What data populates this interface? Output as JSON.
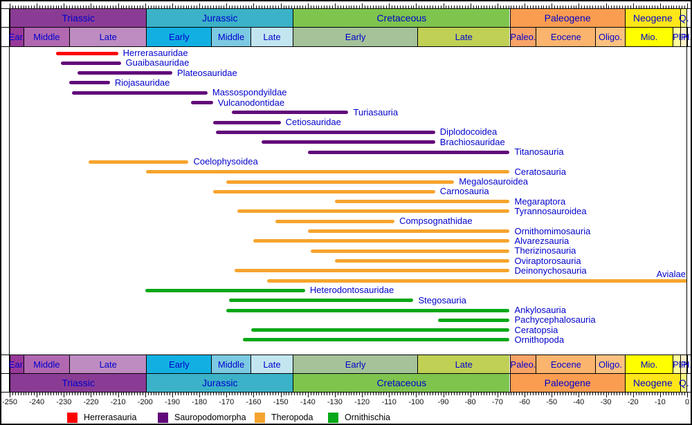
{
  "chart_data": {
    "type": "bar",
    "subtype": "temporal-range-timeline",
    "xlim": [
      -250,
      0
    ],
    "x_tick_labels": [
      "-250",
      "-240",
      "-230",
      "-220",
      "-210",
      "-200",
      "-190",
      "-180",
      "-170",
      "-160",
      "-150",
      "-140",
      "-130",
      "-120",
      "-110",
      "-100",
      "-90",
      "-80",
      "-70",
      "-60",
      "-50",
      "-40",
      "-30",
      "-20",
      "-10",
      "0"
    ],
    "minor_tick_step": 1,
    "major_tick_step": 10,
    "grid": false,
    "label_color": "#0000CC",
    "periods": [
      {
        "label": "Triassic",
        "start": -250,
        "end": -199.6,
        "color": "#8A3C95"
      },
      {
        "label": "Jurassic",
        "start": -199.6,
        "end": -145.5,
        "color": "#3BB2C8"
      },
      {
        "label": "Cretaceous",
        "start": -145.5,
        "end": -65.5,
        "color": "#7EC44D"
      },
      {
        "label": "Paleogene",
        "start": -65.5,
        "end": -23.03,
        "color": "#FA9D50"
      },
      {
        "label": "Neogene",
        "start": -23.03,
        "end": -2.59,
        "color": "#FFE619"
      },
      {
        "label": "Q.",
        "start": -2.59,
        "end": 0,
        "color": "#F9F97F"
      }
    ],
    "epochs": [
      {
        "label": "Ear.",
        "start": -250,
        "end": -245,
        "color": "#983999"
      },
      {
        "label": "Middle",
        "start": -245,
        "end": -228,
        "color": "#B168B1"
      },
      {
        "label": "Late",
        "start": -228,
        "end": -199.6,
        "color": "#BE8CC1"
      },
      {
        "label": "Early",
        "start": -199.6,
        "end": -175.6,
        "color": "#12B0E2"
      },
      {
        "label": "Middle",
        "start": -175.6,
        "end": -161.2,
        "color": "#7CC9E2"
      },
      {
        "label": "Late",
        "start": -161.2,
        "end": -145.5,
        "color": "#C2E5F0"
      },
      {
        "label": "Early",
        "start": -145.5,
        "end": -99.6,
        "color": "#A5C299"
      },
      {
        "label": "Late",
        "start": -99.6,
        "end": -65.5,
        "color": "#BFD055"
      },
      {
        "label": "Paleo.",
        "start": -65.5,
        "end": -55.8,
        "color": "#FAA366"
      },
      {
        "label": "Eocene",
        "start": -55.8,
        "end": -33.9,
        "color": "#FBB46E"
      },
      {
        "label": "Oligo.",
        "start": -33.9,
        "end": -23.03,
        "color": "#FCC17F"
      },
      {
        "label": "Mio.",
        "start": -23.03,
        "end": -5.33,
        "color": "#FFFF00"
      },
      {
        "label": "Pl",
        "start": -5.33,
        "end": -2.59,
        "color": "#FFFF99"
      },
      {
        "label": "P",
        "start": -2.59,
        "end": -0.1,
        "color": "#FFF2C7"
      },
      {
        "label": "H.",
        "start": -0.1,
        "end": 0,
        "color": "#FFFFFF"
      }
    ],
    "groups": {
      "herrerasauria": "#FF0000",
      "sauropodomorpha": "#62097A",
      "theropoda": "#F6A42E",
      "ornithischia": "#06A816"
    },
    "bars": [
      {
        "label": "Herrerasauridae",
        "group": "herrerasauria",
        "start": -233,
        "end": -210
      },
      {
        "label": "Guaibasauridae",
        "group": "sauropodomorpha",
        "start": -231,
        "end": -209
      },
      {
        "label": "Plateosauridae",
        "group": "sauropodomorpha",
        "start": -225,
        "end": -190
      },
      {
        "label": "Riojasauridae",
        "group": "sauropodomorpha",
        "start": -228,
        "end": -213
      },
      {
        "label": "Massospondyildae",
        "group": "sauropodomorpha",
        "start": -227,
        "end": -177
      },
      {
        "label": "Vulcanodontidae",
        "group": "sauropodomorpha",
        "start": -183,
        "end": -175
      },
      {
        "label": "Turiasauria",
        "group": "sauropodomorpha",
        "start": -168,
        "end": -125
      },
      {
        "label": "Cetiosauridae",
        "group": "sauropodomorpha",
        "start": -175,
        "end": -150
      },
      {
        "label": "Diplodocoidea",
        "group": "sauropodomorpha",
        "start": -174,
        "end": -93
      },
      {
        "label": "Brachiosauridae",
        "group": "sauropodomorpha",
        "start": -157,
        "end": -93
      },
      {
        "label": "Titanosauria",
        "group": "sauropodomorpha",
        "start": -140,
        "end": -65.5
      },
      {
        "label": "Coelophysoidea",
        "group": "theropoda",
        "start": -221,
        "end": -184
      },
      {
        "label": "Ceratosauria",
        "group": "theropoda",
        "start": -199.6,
        "end": -65.5
      },
      {
        "label": "Megalosauroidea",
        "group": "theropoda",
        "start": -170,
        "end": -86
      },
      {
        "label": "Carnosauria",
        "group": "theropoda",
        "start": -175,
        "end": -93
      },
      {
        "label": "Megaraptora",
        "group": "theropoda",
        "start": -130,
        "end": -65.5
      },
      {
        "label": "Tyrannosauroidea",
        "group": "theropoda",
        "start": -166,
        "end": -65.5
      },
      {
        "label": "Compsognathidae",
        "group": "theropoda",
        "start": -152,
        "end": -108
      },
      {
        "label": "Ornithomimosauria",
        "group": "theropoda",
        "start": -140,
        "end": -65.5
      },
      {
        "label": "Alvarezsauria",
        "group": "theropoda",
        "start": -160,
        "end": -65.5
      },
      {
        "label": "Therizinosauria",
        "group": "theropoda",
        "start": -139,
        "end": -65.5
      },
      {
        "label": "Oviraptorosauria",
        "group": "theropoda",
        "start": -130,
        "end": -65.5
      },
      {
        "label": "Deinonychosauria",
        "group": "theropoda",
        "start": -167,
        "end": -65.5
      },
      {
        "label": "Avialae",
        "group": "theropoda",
        "start": -155,
        "end": 0,
        "label_placement": "above-right"
      },
      {
        "label": "Heterodontosauridae",
        "group": "ornithischia",
        "start": -200,
        "end": -141
      },
      {
        "label": "Stegosauria",
        "group": "ornithischia",
        "start": -169,
        "end": -101
      },
      {
        "label": "Ankylosauria",
        "group": "ornithischia",
        "start": -170,
        "end": -65.5
      },
      {
        "label": "Pachycephalosauria",
        "group": "ornithischia",
        "start": -92,
        "end": -65.5
      },
      {
        "label": "Ceratopsia",
        "group": "ornithischia",
        "start": -161,
        "end": -65.5
      },
      {
        "label": "Ornithopoda",
        "group": "ornithischia",
        "start": -164,
        "end": -65.5
      }
    ],
    "legend": [
      {
        "label": "Herrerasauria",
        "color": "#FF0000"
      },
      {
        "label": "Sauropodomorpha",
        "color": "#62097A"
      },
      {
        "label": "Theropoda",
        "color": "#F6A42E"
      },
      {
        "label": "Ornithischia",
        "color": "#06A816"
      }
    ]
  }
}
